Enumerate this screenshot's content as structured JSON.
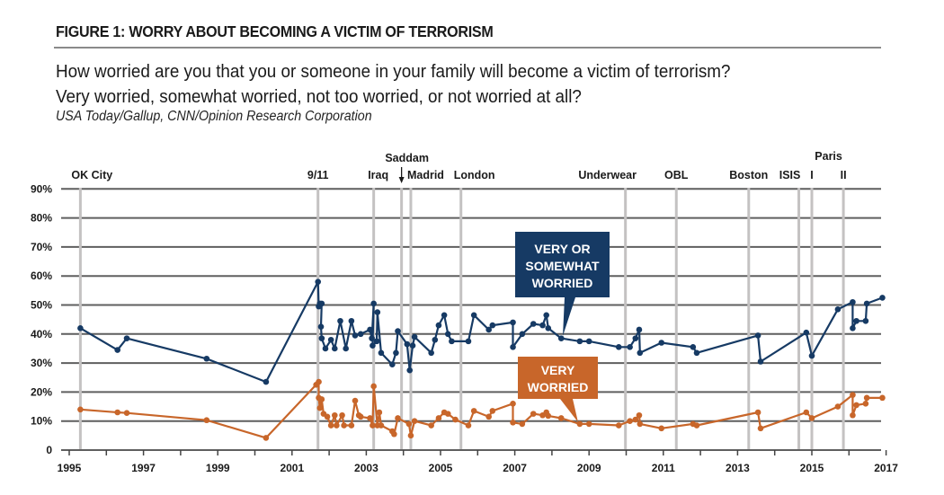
{
  "header": {
    "figure_title": "FIGURE 1: WORRY ABOUT BECOMING A VICTIM OF TERRORISM",
    "question_line1": "How worried are you that you or someone in your family will become a victim of terrorism?",
    "question_line2": "Very worried, somewhat worried, not too worried, or not worried at all?",
    "source": "USA Today/Gallup, CNN/Opinion Research Corporation"
  },
  "chart_data": {
    "type": "line",
    "title": "Worry about becoming a victim of terrorism",
    "xlabel": "",
    "ylabel": "",
    "xlim": [
      1995,
      2017
    ],
    "ylim": [
      0,
      90
    ],
    "grid": true,
    "x_ticks": [
      1995,
      1996,
      1997,
      1998,
      1999,
      2000,
      2001,
      2002,
      2003,
      2004,
      2005,
      2006,
      2007,
      2008,
      2009,
      2010,
      2011,
      2012,
      2013,
      2014,
      2015,
      2016,
      2017
    ],
    "x_tick_labels": [
      "1995",
      "",
      "1997",
      "",
      "1999",
      "",
      "2001",
      "",
      "2003",
      "",
      "2005",
      "",
      "2007",
      "",
      "2009",
      "",
      "2011",
      "",
      "2013",
      "",
      "2015",
      "",
      "2017"
    ],
    "y_ticks": [
      0,
      10,
      20,
      30,
      40,
      50,
      60,
      70,
      80,
      90
    ],
    "y_tick_labels": [
      "0",
      "10%",
      "20%",
      "30%",
      "40%",
      "50%",
      "60%",
      "70%",
      "80%",
      "90%"
    ],
    "events": [
      {
        "label": "OK City",
        "x": 1995.3
      },
      {
        "label": "9/11",
        "x": 2001.7
      },
      {
        "label": "Iraq",
        "x": 2003.2
      },
      {
        "label": "Saddam",
        "x": 2003.95,
        "arrow": true
      },
      {
        "label": "Madrid",
        "x": 2004.2
      },
      {
        "label": "London",
        "x": 2005.55
      },
      {
        "label": "Underwear",
        "x": 2009.98
      },
      {
        "label": "OBL",
        "x": 2011.35
      },
      {
        "label": "Boston",
        "x": 2013.3
      },
      {
        "label": "ISIS",
        "x": 2014.65
      },
      {
        "label": "I",
        "x": 2015.0
      },
      {
        "label": "II",
        "x": 2015.85
      },
      {
        "label": "Paris",
        "x": 2015.45,
        "group_label": true
      }
    ],
    "series": [
      {
        "name": "Very or somewhat worried",
        "callout": [
          "VERY OR",
          "SOMEWHAT",
          "WORRIED"
        ],
        "color": "#163a64",
        "points": [
          [
            1995.3,
            42
          ],
          [
            1996.3,
            34.5
          ],
          [
            1996.55,
            38.5
          ],
          [
            1998.7,
            31.5
          ],
          [
            2000.3,
            23.5
          ],
          [
            2001.7,
            58
          ],
          [
            2001.72,
            49.5
          ],
          [
            2001.75,
            50.5
          ],
          [
            2001.8,
            50.5
          ],
          [
            2001.78,
            42.5
          ],
          [
            2001.8,
            38.5
          ],
          [
            2001.9,
            35
          ],
          [
            2002.05,
            38
          ],
          [
            2002.15,
            35
          ],
          [
            2002.3,
            44.5
          ],
          [
            2002.45,
            35
          ],
          [
            2002.6,
            44.5
          ],
          [
            2002.7,
            39.5
          ],
          [
            2002.85,
            40
          ],
          [
            2003.1,
            41.5
          ],
          [
            2003.15,
            38.5
          ],
          [
            2003.2,
            50.5
          ],
          [
            2003.17,
            36
          ],
          [
            2003.28,
            37.5
          ],
          [
            2003.3,
            47.5
          ],
          [
            2003.4,
            33.5
          ],
          [
            2003.7,
            29.5
          ],
          [
            2003.8,
            33.5
          ],
          [
            2003.85,
            41
          ],
          [
            2004.1,
            36.5
          ],
          [
            2004.17,
            27.5
          ],
          [
            2004.25,
            36
          ],
          [
            2004.3,
            39
          ],
          [
            2004.75,
            33.5
          ],
          [
            2004.85,
            38
          ],
          [
            2004.95,
            43
          ],
          [
            2005.1,
            46.5
          ],
          [
            2005.2,
            40
          ],
          [
            2005.3,
            37.5
          ],
          [
            2005.75,
            37.5
          ],
          [
            2005.9,
            46.5
          ],
          [
            2006.3,
            41.5
          ],
          [
            2006.4,
            43
          ],
          [
            2006.95,
            44
          ],
          [
            2006.95,
            35.5
          ],
          [
            2007.2,
            40
          ],
          [
            2007.5,
            43.5
          ],
          [
            2007.75,
            43
          ],
          [
            2007.85,
            46.5
          ],
          [
            2007.9,
            42
          ],
          [
            2008.25,
            38.5
          ],
          [
            2008.75,
            37.5
          ],
          [
            2009.0,
            37.5
          ],
          [
            2009.8,
            35.5
          ],
          [
            2010.1,
            35.5
          ],
          [
            2010.25,
            38.5
          ],
          [
            2010.35,
            41.5
          ],
          [
            2010.37,
            33.5
          ],
          [
            2010.95,
            37
          ],
          [
            2011.8,
            35.5
          ],
          [
            2011.9,
            33.5
          ],
          [
            2013.55,
            39.5
          ],
          [
            2013.62,
            30.5
          ],
          [
            2014.85,
            40.5
          ],
          [
            2015.0,
            32.5
          ],
          [
            2015.7,
            48.5
          ],
          [
            2016.1,
            51
          ],
          [
            2016.1,
            42
          ],
          [
            2016.2,
            44.5
          ],
          [
            2016.45,
            44.5
          ],
          [
            2016.48,
            50.5
          ],
          [
            2016.9,
            52.5
          ]
        ]
      },
      {
        "name": "Very worried",
        "callout": [
          "VERY",
          "WORRIED"
        ],
        "color": "#c8662a",
        "points": [
          [
            1995.3,
            14
          ],
          [
            1996.3,
            13
          ],
          [
            1996.55,
            12.8
          ],
          [
            1998.7,
            10.3
          ],
          [
            2000.3,
            4.2
          ],
          [
            2001.65,
            22.5
          ],
          [
            2001.72,
            23.5
          ],
          [
            2001.72,
            18
          ],
          [
            2001.75,
            14.5
          ],
          [
            2001.8,
            17.5
          ],
          [
            2001.85,
            12.5
          ],
          [
            2001.95,
            11.5
          ],
          [
            2002.05,
            8.5
          ],
          [
            2002.15,
            12
          ],
          [
            2002.2,
            8.5
          ],
          [
            2002.35,
            12
          ],
          [
            2002.4,
            8.5
          ],
          [
            2002.6,
            8.5
          ],
          [
            2002.7,
            17
          ],
          [
            2002.8,
            12
          ],
          [
            2002.85,
            11.5
          ],
          [
            2003.1,
            11
          ],
          [
            2003.17,
            8.5
          ],
          [
            2003.2,
            22
          ],
          [
            2003.3,
            8.5
          ],
          [
            2003.35,
            13
          ],
          [
            2003.4,
            8.5
          ],
          [
            2003.7,
            6.5
          ],
          [
            2003.75,
            5.5
          ],
          [
            2003.85,
            11
          ],
          [
            2004.15,
            9
          ],
          [
            2004.2,
            5
          ],
          [
            2004.3,
            10
          ],
          [
            2004.75,
            8.5
          ],
          [
            2004.95,
            11
          ],
          [
            2005.1,
            13
          ],
          [
            2005.2,
            12.5
          ],
          [
            2005.4,
            10.5
          ],
          [
            2005.75,
            8.5
          ],
          [
            2005.9,
            13.5
          ],
          [
            2006.3,
            11.5
          ],
          [
            2006.4,
            13.5
          ],
          [
            2006.95,
            16
          ],
          [
            2006.95,
            9.5
          ],
          [
            2007.2,
            9
          ],
          [
            2007.5,
            12.5
          ],
          [
            2007.75,
            12
          ],
          [
            2007.85,
            13
          ],
          [
            2007.9,
            11.8
          ],
          [
            2008.25,
            11
          ],
          [
            2008.75,
            9
          ],
          [
            2009.0,
            9
          ],
          [
            2009.8,
            8.5
          ],
          [
            2010.1,
            10
          ],
          [
            2010.25,
            10.5
          ],
          [
            2010.35,
            12
          ],
          [
            2010.37,
            9
          ],
          [
            2010.95,
            7.5
          ],
          [
            2011.8,
            9
          ],
          [
            2011.9,
            8.5
          ],
          [
            2013.55,
            13
          ],
          [
            2013.62,
            7.5
          ],
          [
            2014.85,
            13
          ],
          [
            2015.0,
            11
          ],
          [
            2015.7,
            15
          ],
          [
            2016.1,
            19
          ],
          [
            2016.1,
            12
          ],
          [
            2016.2,
            15.5
          ],
          [
            2016.45,
            16
          ],
          [
            2016.48,
            18
          ],
          [
            2016.9,
            18
          ]
        ]
      }
    ]
  }
}
